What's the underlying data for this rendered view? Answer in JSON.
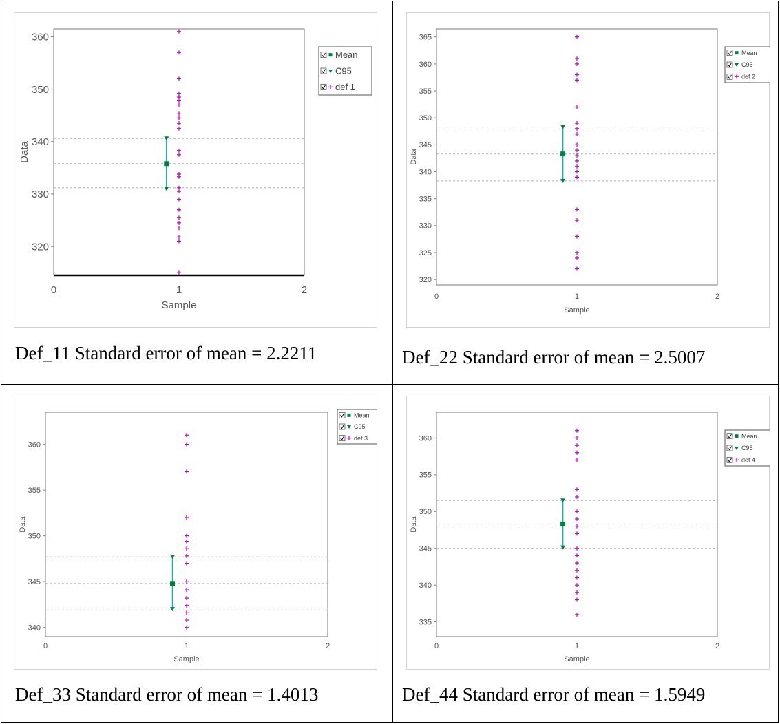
{
  "chart_data": [
    {
      "type": "scatter",
      "xlabel": "Sample",
      "ylabel": "Data",
      "xlim": [
        0,
        2
      ],
      "ylim": [
        314.5,
        361.5
      ],
      "x_ticks": [
        "0",
        "1",
        "2"
      ],
      "y_ticks": [
        "320",
        "330",
        "340",
        "350",
        "360"
      ],
      "y_tick_values": [
        320,
        330,
        340,
        350,
        360
      ],
      "mean": 335.8,
      "ci95": [
        331.0,
        340.6
      ],
      "reference_lines": [
        331.2,
        335.8,
        340.6
      ],
      "points": [
        315.0,
        321.0,
        321.8,
        323.5,
        324.5,
        325.5,
        327.0,
        329.0,
        330.5,
        331.2,
        333.3,
        333.8,
        337.5,
        338.3,
        342.5,
        343.5,
        344.5,
        345.3,
        347.0,
        347.8,
        348.5,
        349.2,
        352.0,
        357.0,
        361.0
      ],
      "legend": [
        "Mean",
        "C95",
        "def 1"
      ],
      "legend_position": "top-right",
      "colors": {
        "mean": "#008040",
        "ci": "#00b8b8",
        "points": "#c000c0"
      }
    },
    {
      "type": "scatter",
      "xlabel": "Sample",
      "ylabel": "Data",
      "xlim": [
        0,
        2
      ],
      "ylim": [
        319,
        366.5
      ],
      "x_ticks": [
        "0",
        "1",
        "2"
      ],
      "y_ticks": [
        "320",
        "325",
        "330",
        "335",
        "340",
        "345",
        "350",
        "355",
        "360",
        "365"
      ],
      "y_tick_values": [
        320,
        325,
        330,
        335,
        340,
        345,
        350,
        355,
        360,
        365
      ],
      "mean": 343.3,
      "ci95": [
        338.3,
        348.3
      ],
      "reference_lines": [
        338.3,
        343.3,
        348.3
      ],
      "points": [
        322.0,
        324.0,
        325.0,
        328.0,
        331.0,
        333.0,
        339.0,
        340.0,
        341.0,
        342.0,
        343.0,
        344.0,
        345.0,
        347.0,
        348.0,
        349.0,
        352.0,
        357.0,
        358.0,
        360.0,
        361.0,
        365.0
      ],
      "legend": [
        "Mean",
        "C95",
        "def 2"
      ],
      "legend_position": "top-right",
      "colors": {
        "mean": "#008040",
        "ci": "#00b8b8",
        "points": "#c000c0"
      }
    },
    {
      "type": "scatter",
      "xlabel": "Sample",
      "ylabel": "Data",
      "xlim": [
        0,
        2
      ],
      "ylim": [
        339,
        363.5
      ],
      "x_ticks": [
        "0",
        "1",
        "2"
      ],
      "y_ticks": [
        "340",
        "345",
        "350",
        "355",
        "360"
      ],
      "y_tick_values": [
        340,
        345,
        350,
        355,
        360
      ],
      "mean": 344.8,
      "ci95": [
        342.0,
        347.7
      ],
      "reference_lines": [
        341.9,
        344.8,
        347.7
      ],
      "points": [
        340.0,
        340.8,
        341.6,
        342.4,
        343.2,
        344.1,
        345.0,
        347.0,
        347.8,
        348.6,
        349.4,
        350.0,
        352.0,
        357.0,
        360.0,
        361.0
      ],
      "legend": [
        "Mean",
        "C95",
        "def 3"
      ],
      "legend_position": "top-right",
      "colors": {
        "mean": "#008040",
        "ci": "#00b8b8",
        "points": "#c000c0"
      }
    },
    {
      "type": "scatter",
      "xlabel": "Sample",
      "ylabel": "Data",
      "xlim": [
        0,
        2
      ],
      "ylim": [
        333,
        363.5
      ],
      "x_ticks": [
        "0",
        "1",
        "2"
      ],
      "y_ticks": [
        "335",
        "340",
        "345",
        "350",
        "355",
        "360"
      ],
      "y_tick_values": [
        335,
        340,
        345,
        350,
        355,
        360
      ],
      "mean": 348.3,
      "ci95": [
        345.1,
        351.5
      ],
      "reference_lines": [
        345.0,
        348.3,
        351.5
      ],
      "points": [
        336.0,
        338.0,
        339.0,
        340.0,
        341.0,
        342.0,
        343.0,
        344.0,
        345.0,
        347.0,
        348.0,
        349.0,
        350.0,
        352.0,
        353.0,
        357.0,
        358.0,
        359.0,
        360.0,
        361.0
      ],
      "legend": [
        "Mean",
        "C95",
        "def 4"
      ],
      "legend_position": "top-right",
      "colors": {
        "mean": "#008040",
        "ci": "#00b8b8",
        "points": "#c000c0"
      }
    }
  ],
  "captions": [
    "Def_11 Standard error of mean = 2.2211",
    "Def_22 Standard error of mean = 2.5007",
    "Def_33 Standard error of mean = 1.4013",
    "Def_44 Standard error of mean = 1.5949"
  ]
}
